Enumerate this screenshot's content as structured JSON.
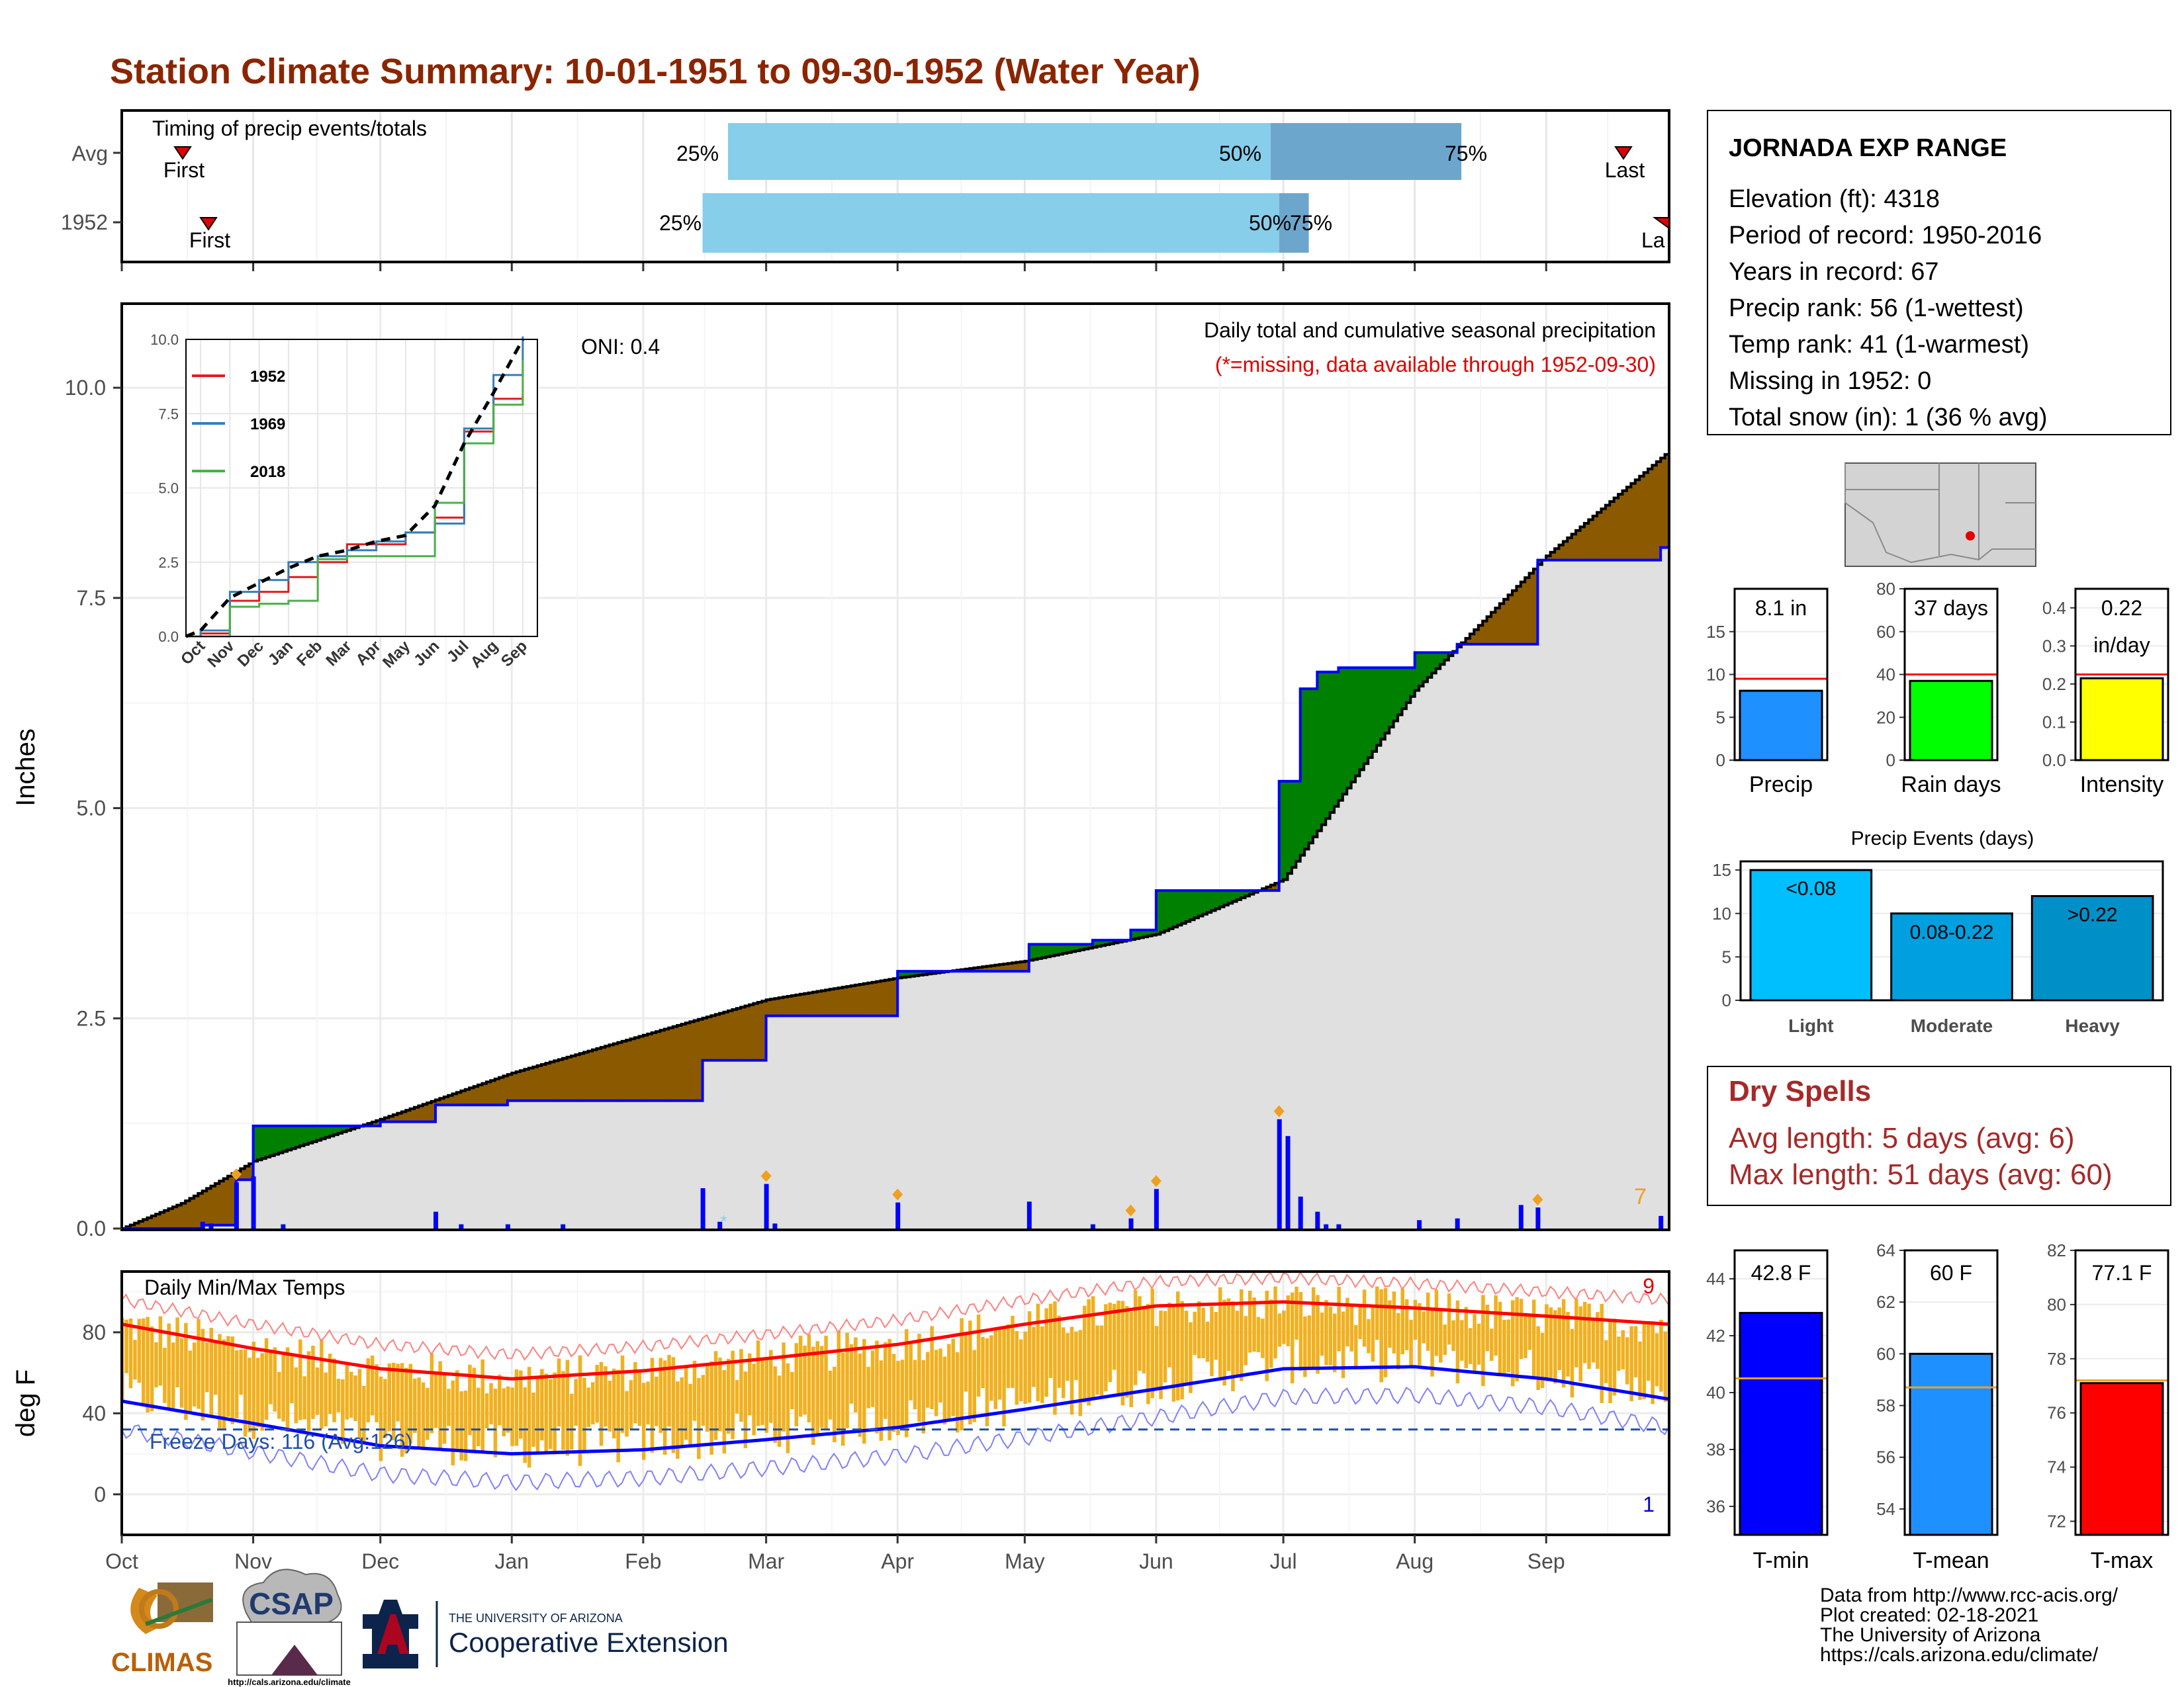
{
  "title": "Station Climate Summary: 10-01-1951 to 09-30-1952 (Water Year)",
  "months": [
    "Oct",
    "Nov",
    "Dec",
    "Jan",
    "Feb",
    "Mar",
    "Apr",
    "May",
    "Jun",
    "Jul",
    "Aug",
    "Sep"
  ],
  "timing": {
    "label": "Timing of precip events/totals",
    "rows": [
      {
        "name": "Avg",
        "first": "First",
        "last": "Last",
        "p25": "25%",
        "p50": "50%",
        "p75": "75%"
      },
      {
        "name": "1952",
        "first": "First",
        "last": "La",
        "p25": "25%",
        "p50": "50%",
        "p75": "75%"
      }
    ]
  },
  "precip_panel": {
    "ylabel": "Inches",
    "oni": "ONI: 0.4",
    "caption": "Daily total and cumulative seasonal precipitation",
    "missing_note": "(*=missing, data available through 1952-09-30)",
    "missing_count": "7",
    "y_ticks": [
      "0.0",
      "2.5",
      "5.0",
      "7.5",
      "10.0"
    ]
  },
  "inset": {
    "y_ticks": [
      "0.0",
      "2.5",
      "5.0",
      "7.5",
      "10.0"
    ],
    "months": [
      "Oct",
      "Nov",
      "Dec",
      "Jan",
      "Feb",
      "Mar",
      "Apr",
      "May",
      "Jun",
      "Jul",
      "Aug",
      "Sep"
    ],
    "legend": [
      {
        "name": "1952",
        "color": "#e41a1c"
      },
      {
        "name": "1969",
        "color": "#377eb8"
      },
      {
        "name": "2018",
        "color": "#4daf4a"
      }
    ]
  },
  "temp_panel": {
    "ylabel": "deg F",
    "label": "Daily Min/Max Temps",
    "freeze": "Freeze Days: 116 (Avg:126)",
    "max_count": "9",
    "min_count": "1",
    "y_ticks": [
      "0",
      "40",
      "80"
    ]
  },
  "station": {
    "name": "JORNADA EXP RANGE",
    "lines": [
      "Elevation (ft): 4318",
      "Period of record: 1950-2016",
      "Years in record: 67",
      "Precip rank: 56 (1-wettest)",
      "Temp rank: 41 (1-warmest)",
      "Missing in 1952: 0",
      "Total snow (in): 1 (36 % avg)"
    ]
  },
  "summary_bars": [
    {
      "label": "Precip",
      "value_text": "8.1 in",
      "value": 8.1,
      "avg": 9.5,
      "max": 20,
      "ticks": [
        "0",
        "5",
        "10",
        "15"
      ],
      "color": "#1e90ff"
    },
    {
      "label": "Rain days",
      "value_text": "37 days",
      "value": 37,
      "avg": 40,
      "max": 80,
      "ticks": [
        "0",
        "20",
        "40",
        "60",
        "80"
      ],
      "color": "#00ff00"
    },
    {
      "label": "Intensity",
      "value_text": "0.22",
      "value_text2": "in/day",
      "value": 0.215,
      "avg": 0.225,
      "max": 0.45,
      "ticks": [
        "0.0",
        "0.1",
        "0.2",
        "0.3",
        "0.4"
      ],
      "color": "#ffff00"
    }
  ],
  "precip_events": {
    "title": "Precip Events (days)",
    "ticks": [
      "0",
      "5",
      "10",
      "15"
    ],
    "bars": [
      {
        "label": "Light",
        "inner": "<0.08",
        "value": 15,
        "color": "#00bfff"
      },
      {
        "label": "Moderate",
        "inner": "0.08-0.22",
        "value": 10,
        "color": "#00a0e0"
      },
      {
        "label": "Heavy",
        "inner": ">0.22",
        "value": 12,
        "color": "#0090c8"
      }
    ]
  },
  "dry_spells": {
    "title": "Dry Spells",
    "avg": "Avg length: 5 days (avg: 6)",
    "max": "Max length: 51 days (avg: 60)"
  },
  "temp_bars": [
    {
      "label": "T-min",
      "value_text": "42.8 F",
      "value": 42.8,
      "avg": 40.5,
      "min": 35,
      "max": 45,
      "ticks": [
        "36",
        "38",
        "40",
        "42",
        "44"
      ],
      "color": "#0000ff"
    },
    {
      "label": "T-mean",
      "value_text": "60 F",
      "value": 60,
      "avg": 58.7,
      "min": 53,
      "max": 64,
      "ticks": [
        "54",
        "56",
        "58",
        "60",
        "62",
        "64"
      ],
      "color": "#1e90ff"
    },
    {
      "label": "T-max",
      "value_text": "77.1 F",
      "value": 77.1,
      "avg": 77.2,
      "min": 71.5,
      "max": 82,
      "ticks": [
        "72",
        "74",
        "76",
        "78",
        "80",
        "82"
      ],
      "color": "#ff0000"
    }
  ],
  "credits": [
    "Data from http://www.rcc-acis.org/",
    "Plot created: 02-18-2021",
    "The University of Arizona",
    "https://cals.arizona.edu/climate/"
  ],
  "logos": {
    "climas": "CLIMAS",
    "csap": "CSAP",
    "csap_url": "http://cals.arizona.edu/climate",
    "ua_small": "THE UNIVERSITY OF ARIZONA",
    "ua_big": "Cooperative Extension"
  },
  "chart_data": [
    {
      "type": "area",
      "title": "Daily total and cumulative seasonal precipitation",
      "ylabel": "Inches",
      "ylim": [
        0,
        11
      ],
      "x_range": [
        "1951-10-01",
        "1952-09-30"
      ],
      "average_cumulative": {
        "dates": [
          "1951-10-01",
          "1951-10-15",
          "1951-11-01",
          "1951-12-01",
          "1952-01-01",
          "1952-02-01",
          "1952-03-01",
          "1952-04-01",
          "1952-05-01",
          "1952-06-01",
          "1952-07-01",
          "1952-08-01",
          "1952-09-01",
          "1952-09-30"
        ],
        "values": [
          0.0,
          0.3,
          0.8,
          1.3,
          1.85,
          2.3,
          2.72,
          2.98,
          3.18,
          3.5,
          4.15,
          6.4,
          8.0,
          9.25
        ]
      },
      "cumulative_1952": {
        "dates": [
          "1951-10-01",
          "1951-10-20",
          "1951-10-28",
          "1951-11-01",
          "1951-12-01",
          "1951-12-14",
          "1951-12-31",
          "1952-02-15",
          "1952-03-01",
          "1952-04-01",
          "1952-05-02",
          "1952-05-17",
          "1952-05-26",
          "1952-06-01",
          "1952-06-30",
          "1952-07-05",
          "1952-07-09",
          "1952-07-14",
          "1952-08-01",
          "1952-08-11",
          "1952-08-30",
          "1952-09-28"
        ],
        "values": [
          0.0,
          0.04,
          0.58,
          1.22,
          1.27,
          1.47,
          1.52,
          2.0,
          2.53,
          3.06,
          3.38,
          3.43,
          3.55,
          4.02,
          5.32,
          6.42,
          6.62,
          6.67,
          6.85,
          6.95,
          7.95,
          8.1
        ]
      },
      "daily_precip": {
        "dates": [
          "1951-10-20",
          "1951-10-22",
          "1951-10-28",
          "1951-11-01",
          "1951-11-08",
          "1951-12-14",
          "1951-12-20",
          "1951-12-31",
          "1952-01-13",
          "1952-02-15",
          "1952-02-19",
          "1952-03-01",
          "1952-03-03",
          "1952-04-01",
          "1952-05-02",
          "1952-05-17",
          "1952-05-26",
          "1952-06-01",
          "1952-06-30",
          "1952-07-02",
          "1952-07-05",
          "1952-07-09",
          "1952-07-11",
          "1952-07-14",
          "1952-08-02",
          "1952-08-11",
          "1952-08-26",
          "1952-08-30",
          "1952-09-28"
        ],
        "values": [
          0.08,
          0.06,
          0.55,
          0.62,
          0.05,
          0.2,
          0.05,
          0.05,
          0.05,
          0.48,
          0.08,
          0.53,
          0.06,
          0.31,
          0.32,
          0.05,
          0.12,
          0.47,
          1.3,
          1.1,
          0.38,
          0.2,
          0.05,
          0.05,
          0.1,
          0.12,
          0.28,
          0.25,
          0.15
        ],
        "labelled_events": [
          "1951-10-28",
          "1952-03-01",
          "1952-04-01",
          "1952-05-26",
          "1952-06-01",
          "1952-06-30",
          "1952-08-30"
        ]
      },
      "annotations": [
        "ONI: 0.4",
        "(*=missing, data available through 1952-09-30)"
      ],
      "missing_count": 7
    },
    {
      "type": "line",
      "title": "",
      "ylim": [
        0,
        10
      ],
      "categories": [
        "Oct",
        "Nov",
        "Dec",
        "Jan",
        "Feb",
        "Mar",
        "Apr",
        "May",
        "Jun",
        "Jul",
        "Aug",
        "Sep"
      ],
      "series": [
        {
          "name": "1952",
          "color": "#e41a1c",
          "values": [
            0.1,
            1.2,
            1.5,
            2.0,
            2.5,
            3.1,
            3.1,
            3.5,
            4.0,
            6.9,
            8.0,
            8.1
          ]
        },
        {
          "name": "1969",
          "color": "#377eb8",
          "values": [
            0.2,
            1.5,
            1.9,
            2.5,
            2.7,
            2.9,
            3.2,
            3.5,
            3.8,
            7.0,
            8.8,
            10.1
          ]
        },
        {
          "name": "2018",
          "color": "#4daf4a",
          "values": [
            0.0,
            1.0,
            1.1,
            1.2,
            2.6,
            2.7,
            2.7,
            2.7,
            4.5,
            6.5,
            7.8,
            9.3
          ]
        },
        {
          "name": "",
          "color": "#000000",
          "dashed": true,
          "values": [
            0.2,
            1.3,
            1.8,
            2.3,
            2.7,
            2.9,
            3.2,
            3.4,
            4.4,
            6.5,
            8.2,
            10.0
          ]
        }
      ]
    },
    {
      "type": "bar",
      "title": "Daily Min/Max Temps",
      "ylabel": "deg F",
      "ylim": [
        -20,
        110
      ],
      "x_range": [
        "1951-10-01",
        "1952-09-30"
      ],
      "max_normal": {
        "dates": [
          "1951-10-01",
          "1951-11-01",
          "1951-12-01",
          "1952-01-01",
          "1952-02-01",
          "1952-03-01",
          "1952-04-01",
          "1952-05-01",
          "1952-06-01",
          "1952-07-01",
          "1952-08-01",
          "1952-09-01",
          "1952-09-30"
        ],
        "values": [
          84,
          72,
          62,
          57,
          61,
          67,
          74,
          84,
          93,
          95,
          92,
          88,
          84
        ]
      },
      "min_normal": {
        "dates": [
          "1951-10-01",
          "1951-11-01",
          "1951-12-01",
          "1952-01-01",
          "1952-02-01",
          "1952-03-01",
          "1952-04-01",
          "1952-05-01",
          "1952-06-01",
          "1952-07-01",
          "1952-08-01",
          "1952-09-01",
          "1952-09-30"
        ],
        "values": [
          46,
          35,
          24,
          20,
          22,
          27,
          33,
          42,
          52,
          62,
          63,
          57,
          47
        ]
      },
      "freeze_line": 32,
      "annotations": [
        "Freeze Days: 116 (Avg:126)",
        "9",
        "1"
      ]
    },
    {
      "type": "bar",
      "title": "",
      "categories": [
        "Precip",
        "Rain days",
        "Intensity"
      ],
      "values": [
        8.1,
        37,
        0.22
      ],
      "averages": [
        9.5,
        40,
        0.225
      ]
    },
    {
      "type": "bar",
      "title": "Precip Events (days)",
      "categories": [
        "Light",
        "Moderate",
        "Heavy"
      ],
      "values": [
        15,
        10,
        12
      ],
      "ylim": [
        0,
        16
      ]
    },
    {
      "type": "bar",
      "title": "",
      "categories": [
        "T-min",
        "T-mean",
        "T-max"
      ],
      "values": [
        42.8,
        60,
        77.1
      ],
      "averages": [
        40.5,
        58.7,
        77.2
      ]
    }
  ]
}
